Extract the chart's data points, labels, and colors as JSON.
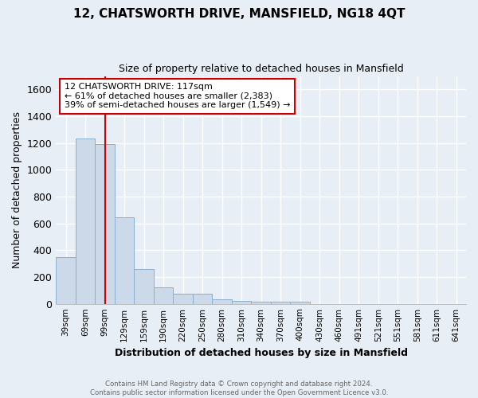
{
  "title": "12, CHATSWORTH DRIVE, MANSFIELD, NG18 4QT",
  "subtitle": "Size of property relative to detached houses in Mansfield",
  "xlabel": "Distribution of detached houses by size in Mansfield",
  "ylabel": "Number of detached properties",
  "bar_color": "#ccd9e8",
  "bar_edge_color": "#8ab0d0",
  "categories": [
    "39sqm",
    "69sqm",
    "99sqm",
    "129sqm",
    "159sqm",
    "190sqm",
    "220sqm",
    "250sqm",
    "280sqm",
    "310sqm",
    "340sqm",
    "370sqm",
    "400sqm",
    "430sqm",
    "460sqm",
    "491sqm",
    "521sqm",
    "551sqm",
    "581sqm",
    "611sqm",
    "641sqm"
  ],
  "values": [
    350,
    1232,
    1190,
    645,
    258,
    122,
    73,
    73,
    35,
    22,
    15,
    15,
    15,
    0,
    0,
    0,
    0,
    0,
    0,
    0,
    0
  ],
  "ylim": [
    0,
    1700
  ],
  "yticks": [
    0,
    200,
    400,
    600,
    800,
    1000,
    1200,
    1400,
    1600
  ],
  "property_line_x": 2,
  "annotation_line1": "12 CHATSWORTH DRIVE: 117sqm",
  "annotation_line2": "← 61% of detached houses are smaller (2,383)",
  "annotation_line3": "39% of semi-detached houses are larger (1,549) →",
  "annotation_box_color": "#ffffff",
  "annotation_box_edge": "#cc0000",
  "footer_text": "Contains HM Land Registry data © Crown copyright and database right 2024.\nContains public sector information licensed under the Open Government Licence v3.0.",
  "bg_color": "#e8eef5",
  "grid_color": "#ffffff",
  "line_color": "#cc0000"
}
